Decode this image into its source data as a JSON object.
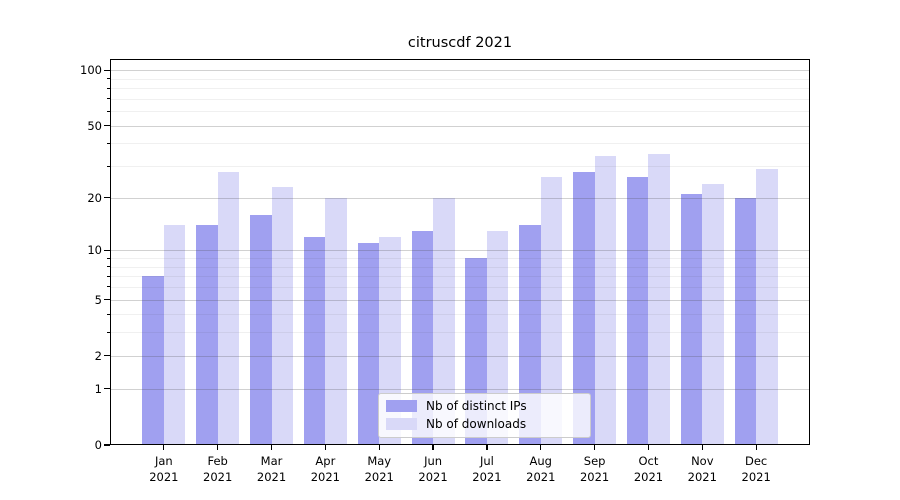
{
  "chart_data": {
    "type": "bar",
    "title": "citruscdf 2021",
    "categories": [
      "Jan",
      "Feb",
      "Mar",
      "Apr",
      "May",
      "Jun",
      "Jul",
      "Aug",
      "Sep",
      "Oct",
      "Nov",
      "Dec"
    ],
    "category_year": "2021",
    "series": [
      {
        "name": "Nb of distinct IPs",
        "color": "#a0a0f0",
        "values": [
          7,
          14,
          16,
          12,
          11,
          13,
          9,
          14,
          28,
          26,
          21,
          20
        ]
      },
      {
        "name": "Nb of downloads",
        "color": "#d9d9f8",
        "values": [
          14,
          28,
          23,
          20,
          12,
          20,
          13,
          26,
          34,
          35,
          24,
          29
        ]
      }
    ],
    "xlabel": "",
    "ylabel": "",
    "yscale": "log1p",
    "ylim": [
      0,
      115
    ],
    "y_major_ticks": [
      0,
      1,
      2,
      5,
      10,
      20,
      50,
      100
    ],
    "y_minor_ticks": [
      3,
      4,
      6,
      7,
      8,
      9,
      30,
      40,
      60,
      70,
      80,
      90
    ],
    "grid": true,
    "legend_position": "lower center"
  },
  "colors": {
    "background": "#ffffff",
    "spine": "#000000",
    "major_grid": "rgba(70,70,70,0.25)",
    "minor_grid": "rgba(70,70,70,0.08)",
    "tick_label": "#000000",
    "legend_border": "#cccccc",
    "legend_background": "rgba(255,255,255,0.8)"
  }
}
